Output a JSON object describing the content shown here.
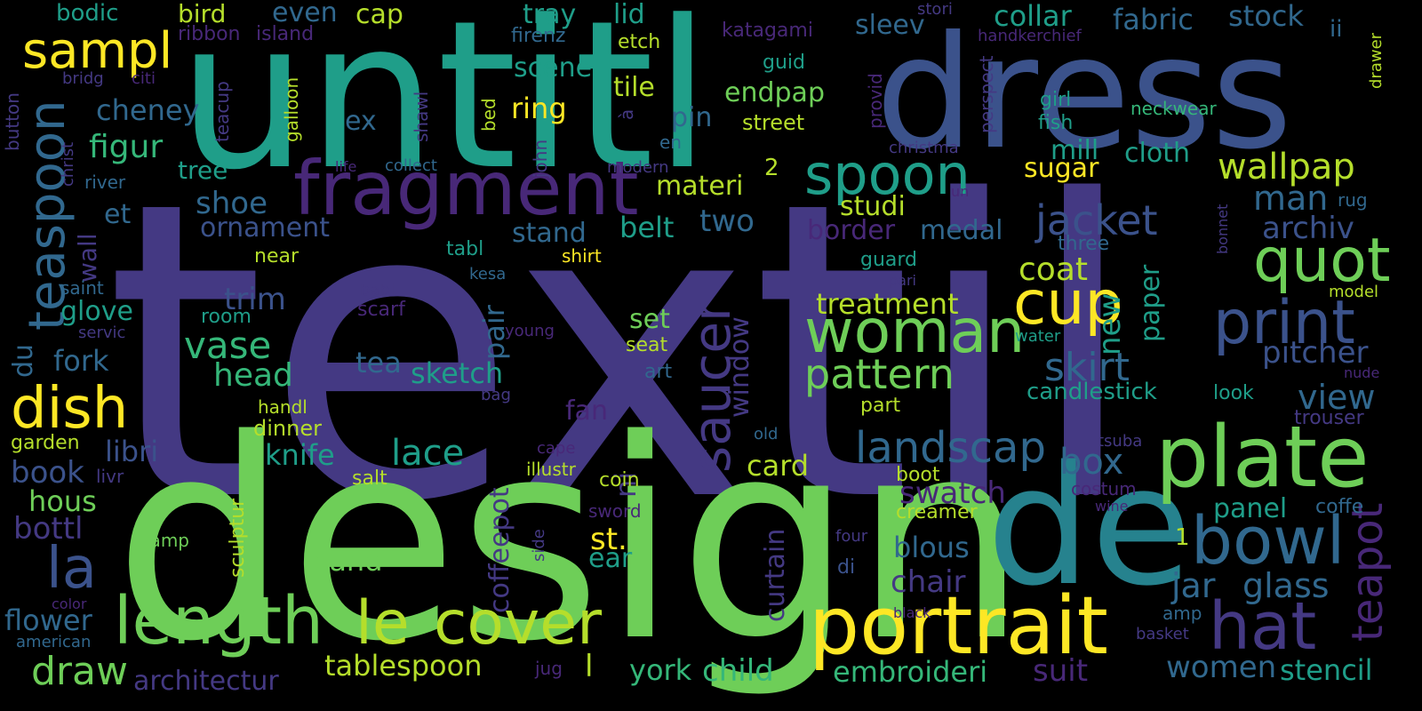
{
  "word_cloud": {
    "background": "#000000",
    "colors": {
      "purple": "#482878",
      "indigo": "#443983",
      "blue": "#3b528b",
      "steel": "#31688e",
      "teal": "#26828e",
      "sea": "#1f9e89",
      "green": "#35b779",
      "lime": "#6ece58",
      "yellowgreen": "#b5de2b",
      "yellow": "#fde725"
    },
    "words": [
      {
        "text": "textil",
        "color": "indigo"
      },
      {
        "text": "design",
        "color": "lime"
      },
      {
        "text": "untitl",
        "color": "sea"
      },
      {
        "text": "dress",
        "color": "blue"
      },
      {
        "text": "de",
        "color": "teal"
      },
      {
        "text": "plate",
        "color": "lime"
      },
      {
        "text": "portrait",
        "color": "yellow"
      },
      {
        "text": "fragment",
        "color": "purple"
      },
      {
        "text": "length",
        "color": "lime"
      },
      {
        "text": "cover",
        "color": "yellowgreen"
      },
      {
        "text": "le",
        "color": "yellowgreen"
      },
      {
        "text": "hat",
        "color": "indigo"
      },
      {
        "text": "bowl",
        "color": "steel"
      },
      {
        "text": "woman",
        "color": "lime"
      },
      {
        "text": "cup",
        "color": "yellow"
      },
      {
        "text": "quot",
        "color": "lime"
      },
      {
        "text": "print",
        "color": "blue"
      },
      {
        "text": "spoon",
        "color": "sea"
      },
      {
        "text": "dish",
        "color": "yellow"
      },
      {
        "text": "sampl",
        "color": "yellow"
      },
      {
        "text": "teaspoon",
        "color": "steel"
      },
      {
        "text": "saucer",
        "color": "indigo"
      },
      {
        "text": "la",
        "color": "blue"
      },
      {
        "text": "landscap",
        "color": "steel"
      },
      {
        "text": "pattern",
        "color": "lime"
      },
      {
        "text": "wallpap",
        "color": "yellowgreen"
      },
      {
        "text": "jacket",
        "color": "blue"
      },
      {
        "text": "skirt",
        "color": "steel"
      },
      {
        "text": "teapot",
        "color": "purple"
      },
      {
        "text": "draw",
        "color": "lime"
      },
      {
        "text": "vase",
        "color": "green"
      },
      {
        "text": "coat",
        "color": "yellowgreen"
      },
      {
        "text": "lace",
        "color": "sea"
      },
      {
        "text": "glass",
        "color": "steel"
      },
      {
        "text": "jar",
        "color": "steel"
      },
      {
        "text": "figur",
        "color": "green"
      },
      {
        "text": "head",
        "color": "green"
      },
      {
        "text": "treatment",
        "color": "yellowgreen"
      },
      {
        "text": "tablespoon",
        "color": "yellowgreen"
      },
      {
        "text": "child",
        "color": "green"
      },
      {
        "text": "cheney",
        "color": "steel"
      },
      {
        "text": "view",
        "color": "steel"
      },
      {
        "text": "pitcher",
        "color": "blue"
      },
      {
        "text": "archiv",
        "color": "blue"
      },
      {
        "text": "man",
        "color": "steel"
      },
      {
        "text": "women",
        "color": "steel"
      },
      {
        "text": "stencil",
        "color": "sea"
      },
      {
        "text": "box",
        "color": "steel"
      },
      {
        "text": "embroideri",
        "color": "green"
      },
      {
        "text": "york",
        "color": "green"
      },
      {
        "text": "architectur",
        "color": "indigo"
      },
      {
        "text": "book",
        "color": "blue"
      },
      {
        "text": "bottl",
        "color": "indigo"
      },
      {
        "text": "flower",
        "color": "steel"
      },
      {
        "text": "suit",
        "color": "purple"
      },
      {
        "text": "collar",
        "color": "sea"
      },
      {
        "text": "fabric",
        "color": "steel"
      },
      {
        "text": "stock",
        "color": "steel"
      },
      {
        "text": "tray",
        "color": "sea"
      },
      {
        "text": "lid",
        "color": "sea"
      },
      {
        "text": "even",
        "color": "steel"
      },
      {
        "text": "cap",
        "color": "yellowgreen"
      },
      {
        "text": "bodic",
        "color": "sea"
      },
      {
        "text": "bird",
        "color": "yellowgreen"
      },
      {
        "text": "scene",
        "color": "sea"
      },
      {
        "text": "tile",
        "color": "yellowgreen"
      },
      {
        "text": "ring",
        "color": "yellow"
      },
      {
        "text": "endpap",
        "color": "lime"
      },
      {
        "text": "sleev",
        "color": "steel"
      },
      {
        "text": "ex",
        "color": "steel"
      },
      {
        "text": "pin",
        "color": "steel"
      },
      {
        "text": "mill",
        "color": "sea"
      },
      {
        "text": "cloth",
        "color": "sea"
      },
      {
        "text": "sugar",
        "color": "yellow"
      },
      {
        "text": "materi",
        "color": "yellowgreen"
      },
      {
        "text": "studi",
        "color": "yellowgreen"
      },
      {
        "text": "shoe",
        "color": "steel"
      },
      {
        "text": "et",
        "color": "steel"
      },
      {
        "text": "tree",
        "color": "sea"
      },
      {
        "text": "ornament",
        "color": "blue"
      },
      {
        "text": "stand",
        "color": "steel"
      },
      {
        "text": "belt",
        "color": "sea"
      },
      {
        "text": "two",
        "color": "steel"
      },
      {
        "text": "border",
        "color": "purple"
      },
      {
        "text": "medal",
        "color": "steel"
      },
      {
        "text": "new",
        "color": "sea"
      },
      {
        "text": "paper",
        "color": "sea"
      },
      {
        "text": "trim",
        "color": "blue"
      },
      {
        "text": "glove",
        "color": "sea"
      },
      {
        "text": "fork",
        "color": "steel"
      },
      {
        "text": "tea",
        "color": "steel"
      },
      {
        "text": "sketch",
        "color": "sea"
      },
      {
        "text": "pair",
        "color": "steel"
      },
      {
        "text": "set",
        "color": "lime"
      },
      {
        "text": "window",
        "color": "indigo"
      },
      {
        "text": "fan",
        "color": "purple"
      },
      {
        "text": "knife",
        "color": "sea"
      },
      {
        "text": "libri",
        "color": "blue"
      },
      {
        "text": "card",
        "color": "yellowgreen"
      },
      {
        "text": "swatch",
        "color": "purple"
      },
      {
        "text": "panel",
        "color": "sea"
      },
      {
        "text": "hous",
        "color": "lime"
      },
      {
        "text": "band",
        "color": "lime"
      },
      {
        "text": "blous",
        "color": "steel"
      },
      {
        "text": "chair",
        "color": "indigo"
      },
      {
        "text": "st.",
        "color": "yellow"
      },
      {
        "text": "ear",
        "color": "sea"
      },
      {
        "text": "curtain",
        "color": "indigo"
      },
      {
        "text": "coffeepot",
        "color": "indigo"
      },
      {
        "text": "du",
        "color": "steel"
      },
      {
        "text": "wall",
        "color": "indigo"
      },
      {
        "text": "ni",
        "color": "indigo"
      },
      {
        "text": "candlestick",
        "color": "sea"
      },
      {
        "text": "l",
        "color": "yellowgreen"
      },
      {
        "text": "2",
        "color": "yellowgreen"
      },
      {
        "text": "1",
        "color": "yellowgreen"
      },
      {
        "text": "ribbon",
        "color": "purple"
      },
      {
        "text": "island",
        "color": "purple"
      },
      {
        "text": "firenz",
        "color": "steel"
      },
      {
        "text": "etch",
        "color": "yellowgreen"
      },
      {
        "text": "katagami",
        "color": "purple"
      },
      {
        "text": "stori",
        "color": "indigo"
      },
      {
        "text": "handkerchief",
        "color": "purple"
      },
      {
        "text": "ii",
        "color": "steel"
      },
      {
        "text": "button",
        "color": "indigo"
      },
      {
        "text": "bridg",
        "color": "indigo"
      },
      {
        "text": "citi",
        "color": "purple"
      },
      {
        "text": "teacup",
        "color": "indigo"
      },
      {
        "text": "galloon",
        "color": "yellowgreen"
      },
      {
        "text": "guid",
        "color": "sea"
      },
      {
        "text": "provid",
        "color": "purple"
      },
      {
        "text": "perspect",
        "color": "indigo"
      },
      {
        "text": "girl",
        "color": "sea"
      },
      {
        "text": "fish",
        "color": "sea"
      },
      {
        "text": "neckwear",
        "color": "green"
      },
      {
        "text": "drawer",
        "color": "yellowgreen"
      },
      {
        "text": "christ",
        "color": "indigo"
      },
      {
        "text": "shawl",
        "color": "indigo"
      },
      {
        "text": "bed",
        "color": "yellowgreen"
      },
      {
        "text": "à",
        "color": "indigo"
      },
      {
        "text": "street",
        "color": "yellowgreen"
      },
      {
        "text": "en",
        "color": "steel"
      },
      {
        "text": "christma",
        "color": "indigo"
      },
      {
        "text": "john",
        "color": "indigo"
      },
      {
        "text": "life",
        "color": "purple"
      },
      {
        "text": "collect",
        "color": "steel"
      },
      {
        "text": "modern",
        "color": "indigo"
      },
      {
        "text": "river",
        "color": "steel"
      },
      {
        "text": "un",
        "color": "purple"
      },
      {
        "text": "rug",
        "color": "steel"
      },
      {
        "text": "bonnet",
        "color": "indigo"
      },
      {
        "text": "three",
        "color": "steel"
      },
      {
        "text": "tabl",
        "color": "sea"
      },
      {
        "text": "shirt",
        "color": "yellow"
      },
      {
        "text": "near",
        "color": "yellowgreen"
      },
      {
        "text": "guard",
        "color": "sea"
      },
      {
        "text": "kesa",
        "color": "steel"
      },
      {
        "text": "pari",
        "color": "indigo"
      },
      {
        "text": "saint",
        "color": "steel"
      },
      {
        "text": "babi",
        "color": "indigo"
      },
      {
        "text": "model",
        "color": "yellowgreen"
      },
      {
        "text": "room",
        "color": "sea"
      },
      {
        "text": "scarf",
        "color": "purple"
      },
      {
        "text": "young",
        "color": "purple"
      },
      {
        "text": "servic",
        "color": "indigo"
      },
      {
        "text": "seat",
        "color": "yellowgreen"
      },
      {
        "text": "water",
        "color": "sea"
      },
      {
        "text": "art",
        "color": "steel"
      },
      {
        "text": "nude",
        "color": "purple"
      },
      {
        "text": "bag",
        "color": "indigo"
      },
      {
        "text": "handl",
        "color": "yellowgreen"
      },
      {
        "text": "part",
        "color": "yellowgreen"
      },
      {
        "text": "look",
        "color": "sea"
      },
      {
        "text": "trouser",
        "color": "indigo"
      },
      {
        "text": "garden",
        "color": "yellowgreen"
      },
      {
        "text": "dinner",
        "color": "yellowgreen"
      },
      {
        "text": "old",
        "color": "steel"
      },
      {
        "text": "tsuba",
        "color": "indigo"
      },
      {
        "text": "cape",
        "color": "purple"
      },
      {
        "text": "boot",
        "color": "yellowgreen"
      },
      {
        "text": "livr",
        "color": "indigo"
      },
      {
        "text": "illustr",
        "color": "yellowgreen"
      },
      {
        "text": "salt",
        "color": "yellowgreen"
      },
      {
        "text": "coin",
        "color": "yellowgreen"
      },
      {
        "text": "costum",
        "color": "purple"
      },
      {
        "text": "wine",
        "color": "purple"
      },
      {
        "text": "coffe",
        "color": "steel"
      },
      {
        "text": "sword",
        "color": "purple"
      },
      {
        "text": "creamer",
        "color": "yellowgreen"
      },
      {
        "text": "sculptur",
        "color": "yellowgreen"
      },
      {
        "text": "lamp",
        "color": "lime"
      },
      {
        "text": "side",
        "color": "indigo"
      },
      {
        "text": "four",
        "color": "indigo"
      },
      {
        "text": "di",
        "color": "blue"
      },
      {
        "text": "color",
        "color": "purple"
      },
      {
        "text": "black",
        "color": "purple"
      },
      {
        "text": "amp",
        "color": "steel"
      },
      {
        "text": "american",
        "color": "steel"
      },
      {
        "text": "jug",
        "color": "purple"
      },
      {
        "text": "basket",
        "color": "indigo"
      }
    ]
  }
}
